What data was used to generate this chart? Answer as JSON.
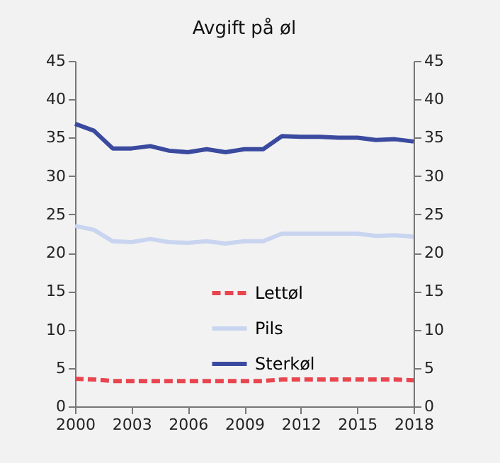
{
  "chart_data": {
    "type": "line",
    "title": "Avgift på øl",
    "x": [
      2000,
      2001,
      2002,
      2003,
      2004,
      2005,
      2006,
      2007,
      2008,
      2009,
      2010,
      2011,
      2012,
      2013,
      2014,
      2015,
      2016,
      2017,
      2018
    ],
    "series": [
      {
        "name": "Lettøl",
        "color": "#e8454f",
        "line_style": "dashed",
        "values": [
          3.6,
          3.5,
          3.3,
          3.3,
          3.3,
          3.3,
          3.3,
          3.3,
          3.3,
          3.3,
          3.3,
          3.5,
          3.5,
          3.5,
          3.5,
          3.5,
          3.5,
          3.5,
          3.4
        ]
      },
      {
        "name": "Pils",
        "color": "#c9d5f0",
        "line_style": "solid",
        "values": [
          23.5,
          23.0,
          21.5,
          21.4,
          21.8,
          21.4,
          21.3,
          21.5,
          21.2,
          21.5,
          21.5,
          22.5,
          22.5,
          22.5,
          22.5,
          22.5,
          22.2,
          22.3,
          22.1
        ]
      },
      {
        "name": "Sterkøl",
        "color": "#3a4a9f",
        "line_style": "solid",
        "values": [
          36.8,
          35.9,
          33.6,
          33.6,
          33.9,
          33.3,
          33.1,
          33.5,
          33.1,
          33.5,
          33.5,
          35.2,
          35.1,
          35.1,
          35.0,
          35.0,
          34.7,
          34.8,
          34.5
        ]
      }
    ],
    "xlim": [
      2000,
      2018
    ],
    "xticks": [
      2000,
      2003,
      2006,
      2009,
      2012,
      2015,
      2018
    ],
    "ylim": [
      0,
      45
    ],
    "yticks": [
      0,
      5,
      10,
      15,
      20,
      25,
      30,
      35,
      40,
      45
    ],
    "y2lim": [
      0,
      45
    ],
    "y2ticks": [
      0,
      5,
      10,
      15,
      20,
      25,
      30,
      35,
      40,
      45
    ],
    "grid": false,
    "legend": "center",
    "marker": "none"
  }
}
